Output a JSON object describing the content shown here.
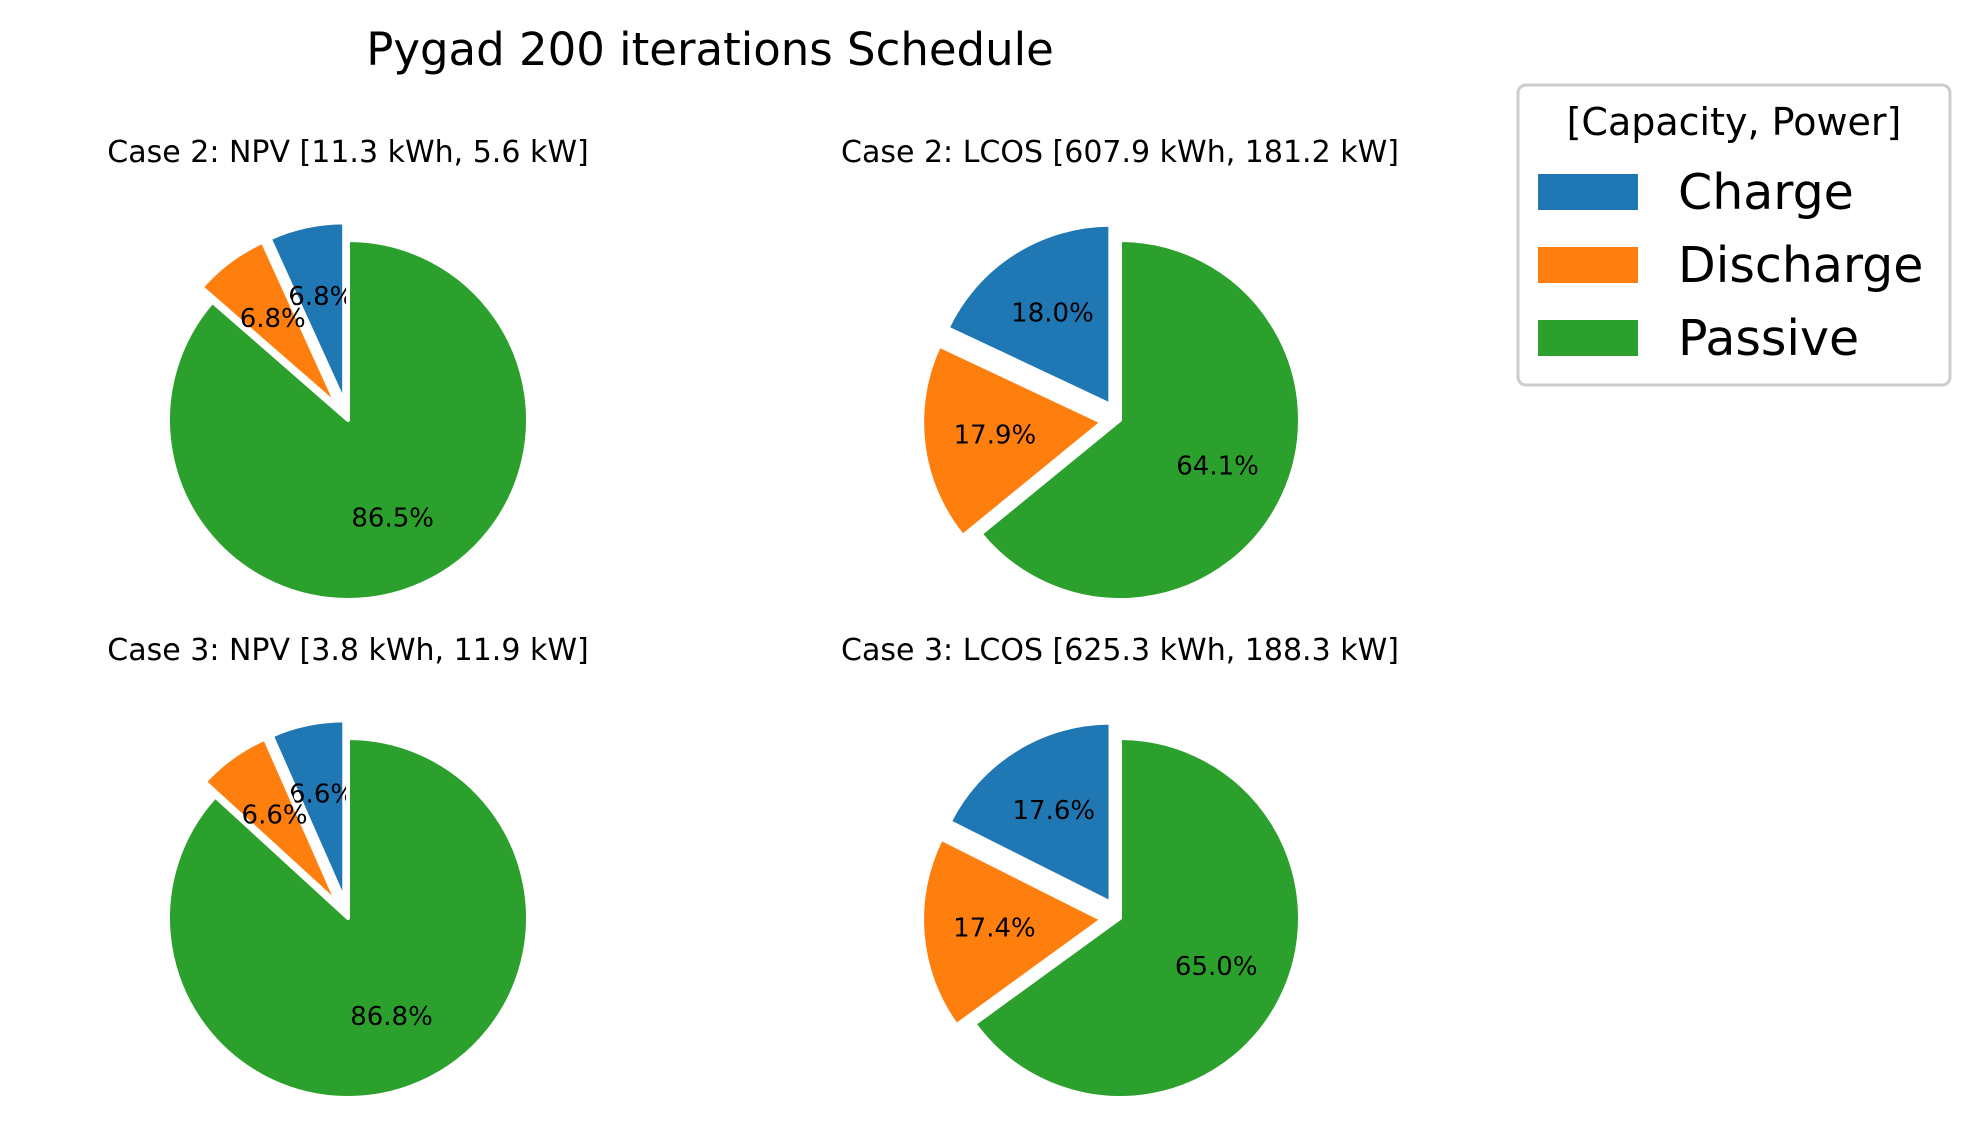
{
  "title": "Pygad 200 iterations Schedule",
  "legend": {
    "title": "[Capacity, Power]",
    "placement": "top-right, outside",
    "entries": [
      {
        "label": "Charge",
        "color": "#1f77b4"
      },
      {
        "label": "Discharge",
        "color": "#ff7f0e"
      },
      {
        "label": "Passive",
        "color": "#2ca02c"
      }
    ]
  },
  "chart_data": [
    {
      "type": "pie",
      "title": "Case 2: NPV [11.3 kWh, 5.6 kW]",
      "categories": [
        "Charge",
        "Discharge",
        "Passive"
      ],
      "values": [
        6.8,
        6.8,
        86.5
      ],
      "labels": [
        "6.8%",
        "6.8%",
        "86.5%"
      ],
      "exploded": [
        "Charge",
        "Discharge"
      ]
    },
    {
      "type": "pie",
      "title": "Case 2: LCOS [607.9 kWh, 181.2 kW]",
      "categories": [
        "Charge",
        "Discharge",
        "Passive"
      ],
      "values": [
        18.0,
        17.9,
        64.1
      ],
      "labels": [
        "18.0%",
        "17.9%",
        "64.1%"
      ],
      "exploded": [
        "Charge",
        "Discharge"
      ]
    },
    {
      "type": "pie",
      "title": "Case 3: NPV [3.8 kWh, 11.9 kW]",
      "categories": [
        "Charge",
        "Discharge",
        "Passive"
      ],
      "values": [
        6.6,
        6.6,
        86.8
      ],
      "labels": [
        "6.6%",
        "6.6%",
        "86.8%"
      ],
      "exploded": [
        "Charge",
        "Discharge"
      ]
    },
    {
      "type": "pie",
      "title": "Case 3: LCOS [625.3 kWh, 188.3 kW]",
      "categories": [
        "Charge",
        "Discharge",
        "Passive"
      ],
      "values": [
        17.6,
        17.4,
        65.0
      ],
      "labels": [
        "17.6%",
        "17.4%",
        "65.0%"
      ],
      "exploded": [
        "Charge",
        "Discharge"
      ]
    }
  ]
}
